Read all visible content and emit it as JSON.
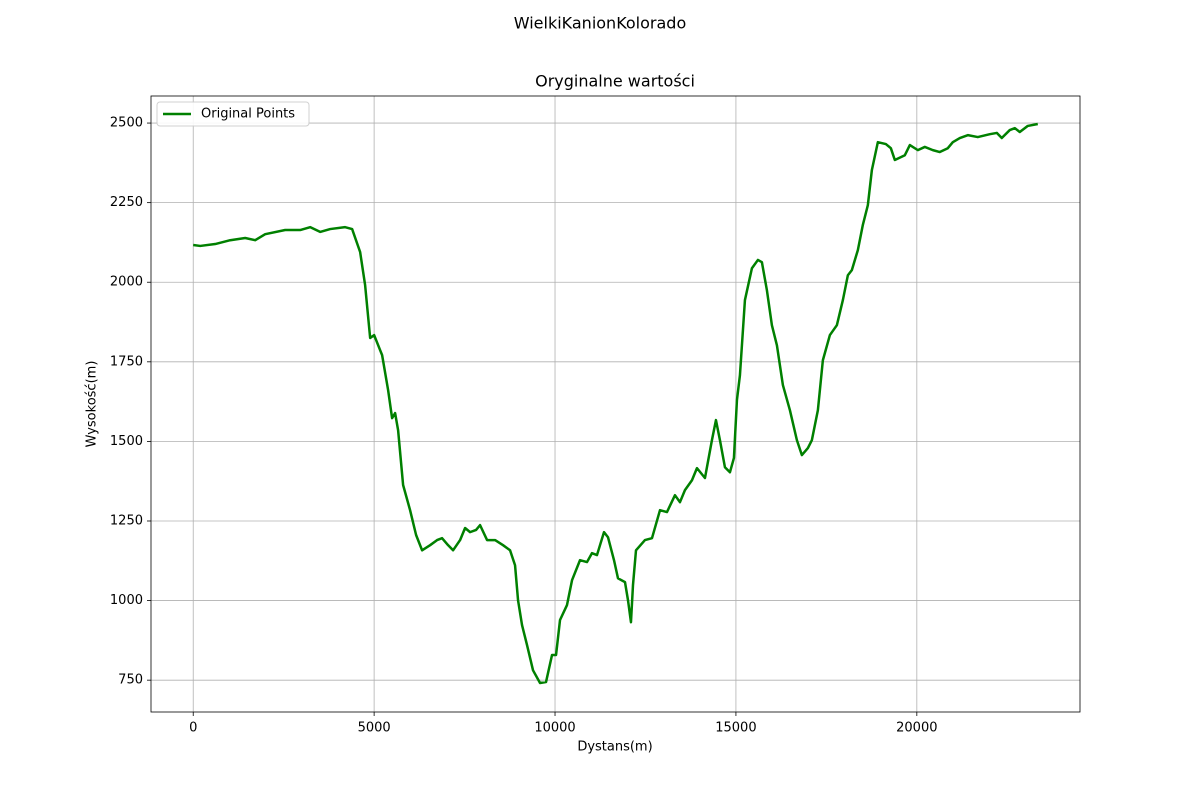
{
  "chart_data": {
    "type": "line",
    "suptitle": "WielkiKanionKolorado",
    "title": "Oryginalne wartości",
    "xlabel": "Dystans(m)",
    "ylabel": "Wysokość(m)",
    "x": [
      0,
      193,
      608,
      1022,
      1436,
      1713,
      1989,
      2541,
      2956,
      3232,
      3508,
      3785,
      4199,
      4392,
      4613,
      4751,
      4890,
      5000,
      5221,
      5387,
      5497,
      5580,
      5663,
      5801,
      5994,
      6160,
      6326,
      6547,
      6740,
      6878,
      7044,
      7182,
      7376,
      7514,
      7652,
      7818,
      7928,
      8122,
      8343,
      8564,
      8757,
      8895,
      8978,
      9088,
      9227,
      9392,
      9586,
      9751,
      9917,
      10028,
      10138,
      10331,
      10470,
      10691,
      10884,
      11022,
      11160,
      11243,
      11354,
      11464,
      11630,
      11740,
      11934,
      12017,
      12099,
      12155,
      12238,
      12486,
      12680,
      12901,
      13094,
      13315,
      13453,
      13591,
      13785,
      13923,
      14144,
      14337,
      14448,
      14558,
      14696,
      14834,
      14945,
      15028,
      15111,
      15249,
      15442,
      15608,
      15718,
      15856,
      15994,
      16133,
      16298,
      16492,
      16685,
      16823,
      16989,
      17099,
      17265,
      17403,
      17597,
      17790,
      17956,
      18094,
      18204,
      18370,
      18508,
      18646,
      18757,
      18923,
      19144,
      19282,
      19392,
      19669,
      19807,
      20028,
      20221,
      20442,
      20635,
      20856,
      20994,
      21188,
      21409,
      21685,
      22017,
      22210,
      22348,
      22569,
      22707,
      22845,
      23066,
      23343
    ],
    "series": [
      {
        "name": "Original Points",
        "color": "#008000",
        "values": [
          2117,
          2114,
          2120,
          2132,
          2139,
          2132,
          2151,
          2164,
          2164,
          2173,
          2158,
          2167,
          2173,
          2167,
          2095,
          1991,
          1825,
          1834,
          1771,
          1661,
          1573,
          1589,
          1535,
          1363,
          1284,
          1206,
          1158,
          1174,
          1190,
          1196,
          1174,
          1158,
          1190,
          1228,
          1215,
          1222,
          1237,
          1190,
          1190,
          1174,
          1158,
          1111,
          1001,
          923,
          860,
          781,
          741,
          744,
          829,
          829,
          939,
          986,
          1064,
          1127,
          1121,
          1149,
          1143,
          1174,
          1215,
          1199,
          1127,
          1070,
          1058,
          1001,
          932,
          1049,
          1158,
          1190,
          1196,
          1284,
          1278,
          1331,
          1309,
          1347,
          1378,
          1416,
          1385,
          1504,
          1567,
          1504,
          1419,
          1403,
          1448,
          1630,
          1708,
          1944,
          2044,
          2070,
          2063,
          1975,
          1865,
          1802,
          1677,
          1598,
          1504,
          1457,
          1479,
          1504,
          1598,
          1755,
          1834,
          1865,
          1944,
          2022,
          2038,
          2101,
          2180,
          2242,
          2352,
          2440,
          2434,
          2421,
          2384,
          2399,
          2431,
          2415,
          2425,
          2415,
          2409,
          2421,
          2440,
          2453,
          2462,
          2456,
          2465,
          2469,
          2453,
          2478,
          2484,
          2472,
          2491,
          2497
        ]
      }
    ],
    "xlim": [
      -1167,
      24510
    ],
    "ylim": [
      650,
      2585
    ],
    "xticks": [
      0,
      5000,
      10000,
      15000,
      20000
    ],
    "yticks": [
      750,
      1000,
      1250,
      1500,
      1750,
      2000,
      2250,
      2500
    ],
    "grid": true,
    "legend": "upper left"
  }
}
